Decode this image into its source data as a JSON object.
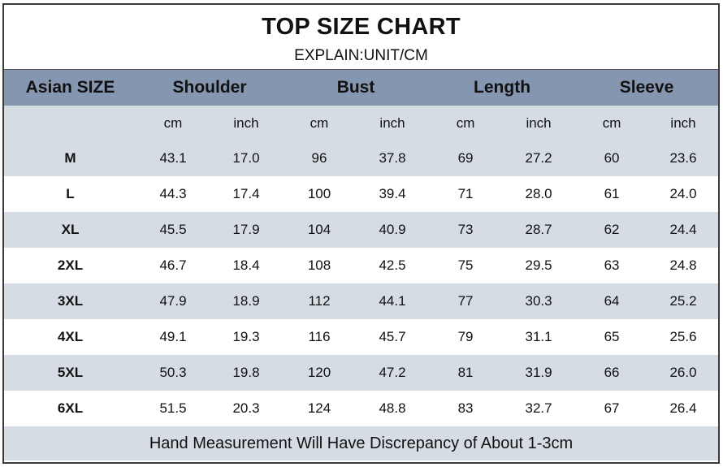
{
  "title": "TOP SIZE CHART",
  "subtitle": "EXPLAIN:UNIT/CM",
  "columns": {
    "size": "Asian SIZE",
    "groups": [
      "Shoulder",
      "Bust",
      "Length",
      "Sleeve"
    ],
    "units": [
      "cm",
      "inch",
      "cm",
      "inch",
      "cm",
      "inch",
      "cm",
      "inch"
    ]
  },
  "rows": [
    {
      "size": "M",
      "values": [
        "43.1",
        "17.0",
        "96",
        "37.8",
        "69",
        "27.2",
        "60",
        "23.6"
      ]
    },
    {
      "size": "L",
      "values": [
        "44.3",
        "17.4",
        "100",
        "39.4",
        "71",
        "28.0",
        "61",
        "24.0"
      ]
    },
    {
      "size": "XL",
      "values": [
        "45.5",
        "17.9",
        "104",
        "40.9",
        "73",
        "28.7",
        "62",
        "24.4"
      ]
    },
    {
      "size": "2XL",
      "values": [
        "46.7",
        "18.4",
        "108",
        "42.5",
        "75",
        "29.5",
        "63",
        "24.8"
      ]
    },
    {
      "size": "3XL",
      "values": [
        "47.9",
        "18.9",
        "112",
        "44.1",
        "77",
        "30.3",
        "64",
        "25.2"
      ]
    },
    {
      "size": "4XL",
      "values": [
        "49.1",
        "19.3",
        "116",
        "45.7",
        "79",
        "31.1",
        "65",
        "25.6"
      ]
    },
    {
      "size": "5XL",
      "values": [
        "50.3",
        "19.8",
        "120",
        "47.2",
        "81",
        "31.9",
        "66",
        "26.0"
      ]
    },
    {
      "size": "6XL",
      "values": [
        "51.5",
        "20.3",
        "124",
        "48.8",
        "83",
        "32.7",
        "67",
        "26.4"
      ]
    }
  ],
  "footer": "Hand Measurement Will Have Discrepancy of About 1-3cm",
  "colors": {
    "header_band": "#8496b0",
    "shade_band": "#d6dce4",
    "border": "#3a3a3a"
  }
}
